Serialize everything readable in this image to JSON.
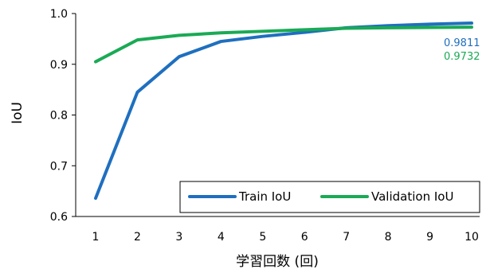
{
  "chart_data": {
    "type": "line",
    "title": "",
    "xlabel": "学習回数 (回)",
    "ylabel": "IoU",
    "x": [
      1,
      2,
      3,
      4,
      5,
      6,
      7,
      8,
      9,
      10
    ],
    "x_tick_labels": [
      "1",
      "2",
      "3",
      "4",
      "5",
      "6",
      "7",
      "8",
      "9",
      "10"
    ],
    "ylim": [
      0.6,
      1.0
    ],
    "y_tick_values": [
      0.6,
      0.7,
      0.8,
      0.9,
      1.0
    ],
    "y_tick_labels": [
      "0.6",
      "0.7",
      "0.8",
      "0.9",
      "1.0"
    ],
    "grid": false,
    "legend_placement": "bottom-right",
    "series": [
      {
        "name": "Train IoU",
        "color": "#1f6fbf",
        "values": [
          0.636,
          0.845,
          0.915,
          0.945,
          0.955,
          0.963,
          0.972,
          0.976,
          0.979,
          0.9811
        ],
        "end_label": "0.9811"
      },
      {
        "name": "Validation IoU",
        "color": "#1aaa55",
        "values": [
          0.905,
          0.948,
          0.957,
          0.962,
          0.965,
          0.968,
          0.971,
          0.972,
          0.9725,
          0.9732
        ],
        "end_label": "0.9732"
      }
    ]
  }
}
